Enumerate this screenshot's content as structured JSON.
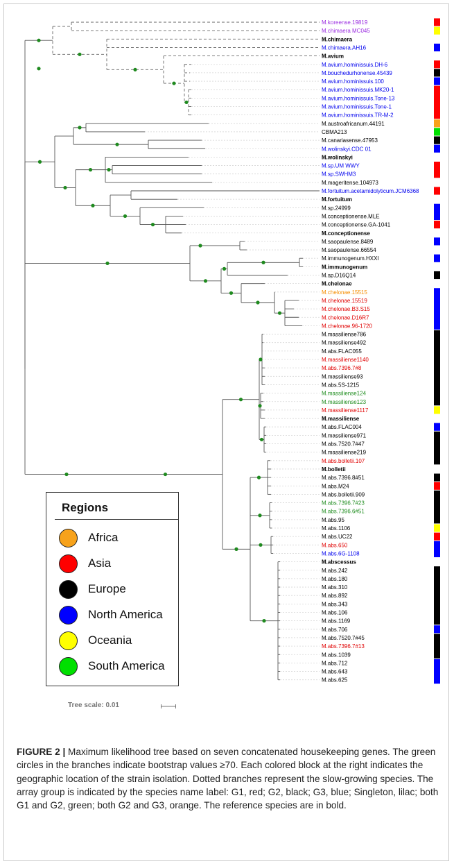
{
  "colors": {
    "G1_red": "#e00000",
    "G2_black": "#000000",
    "G3_blue": "#0000ee",
    "singleton_lilac": "#9a2be0",
    "G1_G2_green": "#1e8c1e",
    "G2_G3_orange": "#f58d00",
    "bootstrap_dot": "#1f8a1f",
    "region_Africa": "#f7a21b",
    "region_Asia": "#ff0000",
    "region_Europe": "#000000",
    "region_North_America": "#0000ff",
    "region_Oceania": "#ffff00",
    "region_South_America": "#00e000"
  },
  "leaves": [
    {
      "name": "M.koreense.19819",
      "color": "#9a2be0",
      "bold": false
    },
    {
      "name": "M.chimaera MC045",
      "color": "#9a2be0",
      "bold": false
    },
    {
      "name": "M.chimaera",
      "color": "#000000",
      "bold": true
    },
    {
      "name": "M.chimaera.AH16",
      "color": "#0000ee",
      "bold": false
    },
    {
      "name": "M.avium",
      "color": "#000000",
      "bold": true
    },
    {
      "name": "M.avium.hominissuis.DH-6",
      "color": "#0000ee",
      "bold": false
    },
    {
      "name": "M.bouchedurhonense.45439",
      "color": "#0000ee",
      "bold": false
    },
    {
      "name": "M.avium.hominissuis.100",
      "color": "#0000ee",
      "bold": false
    },
    {
      "name": "M.avium.hominissuis.MK20-1",
      "color": "#0000ee",
      "bold": false
    },
    {
      "name": "M.avium.hominissuis.Tone-13",
      "color": "#0000ee",
      "bold": false
    },
    {
      "name": "M.avium.hominissuis.Tone-1",
      "color": "#0000ee",
      "bold": false
    },
    {
      "name": "M.avium.hominissuis.TR-M-2",
      "color": "#0000ee",
      "bold": false
    },
    {
      "name": "M.austroafricanum.44191",
      "color": "#000000",
      "bold": false
    },
    {
      "name": "CBMA213",
      "color": "#000000",
      "bold": false
    },
    {
      "name": "M.canariasense.47953",
      "color": "#000000",
      "bold": false
    },
    {
      "name": "M.wolinskyi.CDC 01",
      "color": "#0000ee",
      "bold": false
    },
    {
      "name": "M.wolinskyi",
      "color": "#000000",
      "bold": true
    },
    {
      "name": "M.sp.UM WWY",
      "color": "#0000ee",
      "bold": false
    },
    {
      "name": "M.sp.SWHM3",
      "color": "#0000ee",
      "bold": false
    },
    {
      "name": "M.mageritense.104973",
      "color": "#000000",
      "bold": false
    },
    {
      "name": "M.fortuitum.acetamidolyticum.JCM6368",
      "color": "#0000ee",
      "bold": false
    },
    {
      "name": "M.fortuitum",
      "color": "#000000",
      "bold": true
    },
    {
      "name": "M.sp.24999",
      "color": "#000000",
      "bold": false
    },
    {
      "name": "M.conceptionense.MLE",
      "color": "#000000",
      "bold": false
    },
    {
      "name": "M.conceptionense.GA-1041",
      "color": "#000000",
      "bold": false
    },
    {
      "name": "M.conceptionense",
      "color": "#000000",
      "bold": true
    },
    {
      "name": "M.saopaulense.8489",
      "color": "#000000",
      "bold": false
    },
    {
      "name": "M.saopaulense.66554",
      "color": "#000000",
      "bold": false
    },
    {
      "name": "M.immunogenum.HXXI",
      "color": "#000000",
      "bold": false
    },
    {
      "name": "M.immunogenum",
      "color": "#000000",
      "bold": true
    },
    {
      "name": "M.sp.D16Q14",
      "color": "#000000",
      "bold": false
    },
    {
      "name": "M.chelonae",
      "color": "#000000",
      "bold": true
    },
    {
      "name": "M.chelonae.15515",
      "color": "#f58d00",
      "bold": false
    },
    {
      "name": "M.chelonae.15519",
      "color": "#e00000",
      "bold": false
    },
    {
      "name": "M.chelonae.B3.S15",
      "color": "#e00000",
      "bold": false
    },
    {
      "name": "M.chelonae.D16R7",
      "color": "#e00000",
      "bold": false
    },
    {
      "name": "M.chelonae.96-1720",
      "color": "#e00000",
      "bold": false
    },
    {
      "name": "M.massiliense786",
      "color": "#000000",
      "bold": false
    },
    {
      "name": "M.massiliense492",
      "color": "#000000",
      "bold": false
    },
    {
      "name": "M.abs.FLAC055",
      "color": "#000000",
      "bold": false
    },
    {
      "name": "M.massiliense1140",
      "color": "#e00000",
      "bold": false
    },
    {
      "name": "M.abs.7396.7#8",
      "color": "#e00000",
      "bold": false
    },
    {
      "name": "M.massiliense93",
      "color": "#000000",
      "bold": false
    },
    {
      "name": "M.abs.5S-1215",
      "color": "#000000",
      "bold": false
    },
    {
      "name": "M.massiliense124",
      "color": "#1e8c1e",
      "bold": false
    },
    {
      "name": "M.massiliense123",
      "color": "#1e8c1e",
      "bold": false
    },
    {
      "name": "M.massiliense1117",
      "color": "#e00000",
      "bold": false
    },
    {
      "name": "M.massiliense",
      "color": "#000000",
      "bold": true
    },
    {
      "name": "M.abs.FLAC004",
      "color": "#000000",
      "bold": false
    },
    {
      "name": "M.massiliense971",
      "color": "#000000",
      "bold": false
    },
    {
      "name": "M.abs.7520.7#47",
      "color": "#000000",
      "bold": false
    },
    {
      "name": "M.massiliense219",
      "color": "#000000",
      "bold": false
    },
    {
      "name": "M.abs.bolletii.107",
      "color": "#e00000",
      "bold": false
    },
    {
      "name": "M.bolletii",
      "color": "#000000",
      "bold": true
    },
    {
      "name": "M.abs.7396.8#51",
      "color": "#000000",
      "bold": false
    },
    {
      "name": "M.abs.M24",
      "color": "#000000",
      "bold": false
    },
    {
      "name": "M.abs.bolletii.909",
      "color": "#000000",
      "bold": false
    },
    {
      "name": "M.abs.7396.7#23",
      "color": "#1e8c1e",
      "bold": false
    },
    {
      "name": "M.abs.7396.6#51",
      "color": "#1e8c1e",
      "bold": false
    },
    {
      "name": "M.abs.95",
      "color": "#000000",
      "bold": false
    },
    {
      "name": "M.abs.1106",
      "color": "#000000",
      "bold": false
    },
    {
      "name": "M.abs.UC22",
      "color": "#000000",
      "bold": false
    },
    {
      "name": "M.abs.650",
      "color": "#e00000",
      "bold": false
    },
    {
      "name": "M.abs.6G-1108",
      "color": "#0000ee",
      "bold": false
    },
    {
      "name": "M.abscessus",
      "color": "#000000",
      "bold": true
    },
    {
      "name": "M.abs.242",
      "color": "#000000",
      "bold": false
    },
    {
      "name": "M.abs.180",
      "color": "#000000",
      "bold": false
    },
    {
      "name": "M.abs.310",
      "color": "#000000",
      "bold": false
    },
    {
      "name": "M.abs.892",
      "color": "#000000",
      "bold": false
    },
    {
      "name": "M.abs.343",
      "color": "#000000",
      "bold": false
    },
    {
      "name": "M.abs.106",
      "color": "#000000",
      "bold": false
    },
    {
      "name": "M.abs.1169",
      "color": "#000000",
      "bold": false
    },
    {
      "name": "M.abs.706",
      "color": "#000000",
      "bold": false
    },
    {
      "name": "M.abs.7520.7#45",
      "color": "#000000",
      "bold": false
    },
    {
      "name": "M.abs.7396.7#13",
      "color": "#e00000",
      "bold": false
    },
    {
      "name": "M.abs.1039",
      "color": "#000000",
      "bold": false
    },
    {
      "name": "M.abs.712",
      "color": "#000000",
      "bold": false
    },
    {
      "name": "M.abs.643",
      "color": "#000000",
      "bold": false
    },
    {
      "name": "M.abs.625",
      "color": "#000000",
      "bold": false
    }
  ],
  "region_strip": [
    {
      "from": 0,
      "to": 0,
      "region": "Asia"
    },
    {
      "from": 1,
      "to": 1,
      "region": "Oceania"
    },
    {
      "from": 3,
      "to": 3,
      "region": "North America"
    },
    {
      "from": 5,
      "to": 5,
      "region": "Asia"
    },
    {
      "from": 6,
      "to": 6,
      "region": "Europe"
    },
    {
      "from": 7,
      "to": 7,
      "region": "North America"
    },
    {
      "from": 8,
      "to": 11,
      "region": "Asia"
    },
    {
      "from": 12,
      "to": 12,
      "region": "Africa"
    },
    {
      "from": 13,
      "to": 13,
      "region": "South America"
    },
    {
      "from": 14,
      "to": 14,
      "region": "Europe"
    },
    {
      "from": 15,
      "to": 15,
      "region": "North America"
    },
    {
      "from": 17,
      "to": 18,
      "region": "Asia"
    },
    {
      "from": 20,
      "to": 20,
      "region": "Asia"
    },
    {
      "from": 22,
      "to": 23,
      "region": "North America"
    },
    {
      "from": 24,
      "to": 24,
      "region": "Asia"
    },
    {
      "from": 26,
      "to": 26,
      "region": "North America"
    },
    {
      "from": 28,
      "to": 28,
      "region": "North America"
    },
    {
      "from": 30,
      "to": 30,
      "region": "Europe"
    },
    {
      "from": 32,
      "to": 36,
      "region": "North America"
    },
    {
      "from": 37,
      "to": 45,
      "region": "Europe"
    },
    {
      "from": 46,
      "to": 46,
      "region": "Oceania"
    },
    {
      "from": 48,
      "to": 48,
      "region": "North America"
    },
    {
      "from": 49,
      "to": 52,
      "region": "Europe"
    },
    {
      "from": 54,
      "to": 54,
      "region": "Europe"
    },
    {
      "from": 55,
      "to": 55,
      "region": "Asia"
    },
    {
      "from": 56,
      "to": 59,
      "region": "Europe"
    },
    {
      "from": 60,
      "to": 60,
      "region": "Oceania"
    },
    {
      "from": 61,
      "to": 61,
      "region": "Asia"
    },
    {
      "from": 62,
      "to": 63,
      "region": "North America"
    },
    {
      "from": 65,
      "to": 71,
      "region": "Europe"
    },
    {
      "from": 72,
      "to": 72,
      "region": "North America"
    },
    {
      "from": 73,
      "to": 75,
      "region": "Europe"
    },
    {
      "from": 76,
      "to": 78,
      "region": "North America"
    }
  ],
  "legend": {
    "title": "Regions",
    "items": [
      {
        "label": "Africa",
        "color": "#f7a21b"
      },
      {
        "label": "Asia",
        "color": "#ff0000"
      },
      {
        "label": "Europe",
        "color": "#000000"
      },
      {
        "label": "North America",
        "color": "#0000ff"
      },
      {
        "label": "Oceania",
        "color": "#ffff00"
      },
      {
        "label": "South America",
        "color": "#00e000"
      }
    ]
  },
  "scale_label": "Tree scale: 0.01",
  "caption": {
    "label": "FIGURE 2 |",
    "text": " Maximum likelihood tree based on seven concatenated housekeeping genes. The green circles in the branches indicate bootstrap values ≥70. Each colored block at the right indicates the geographic location of the strain isolation. Dotted branches represent the slow-growing species. The array group is indicated by the species name label: G1, red; G2, black; G3, blue; Singleton, lilac; both G1 and G2, green; both G2 and G3, orange. The reference species are in bold."
  }
}
